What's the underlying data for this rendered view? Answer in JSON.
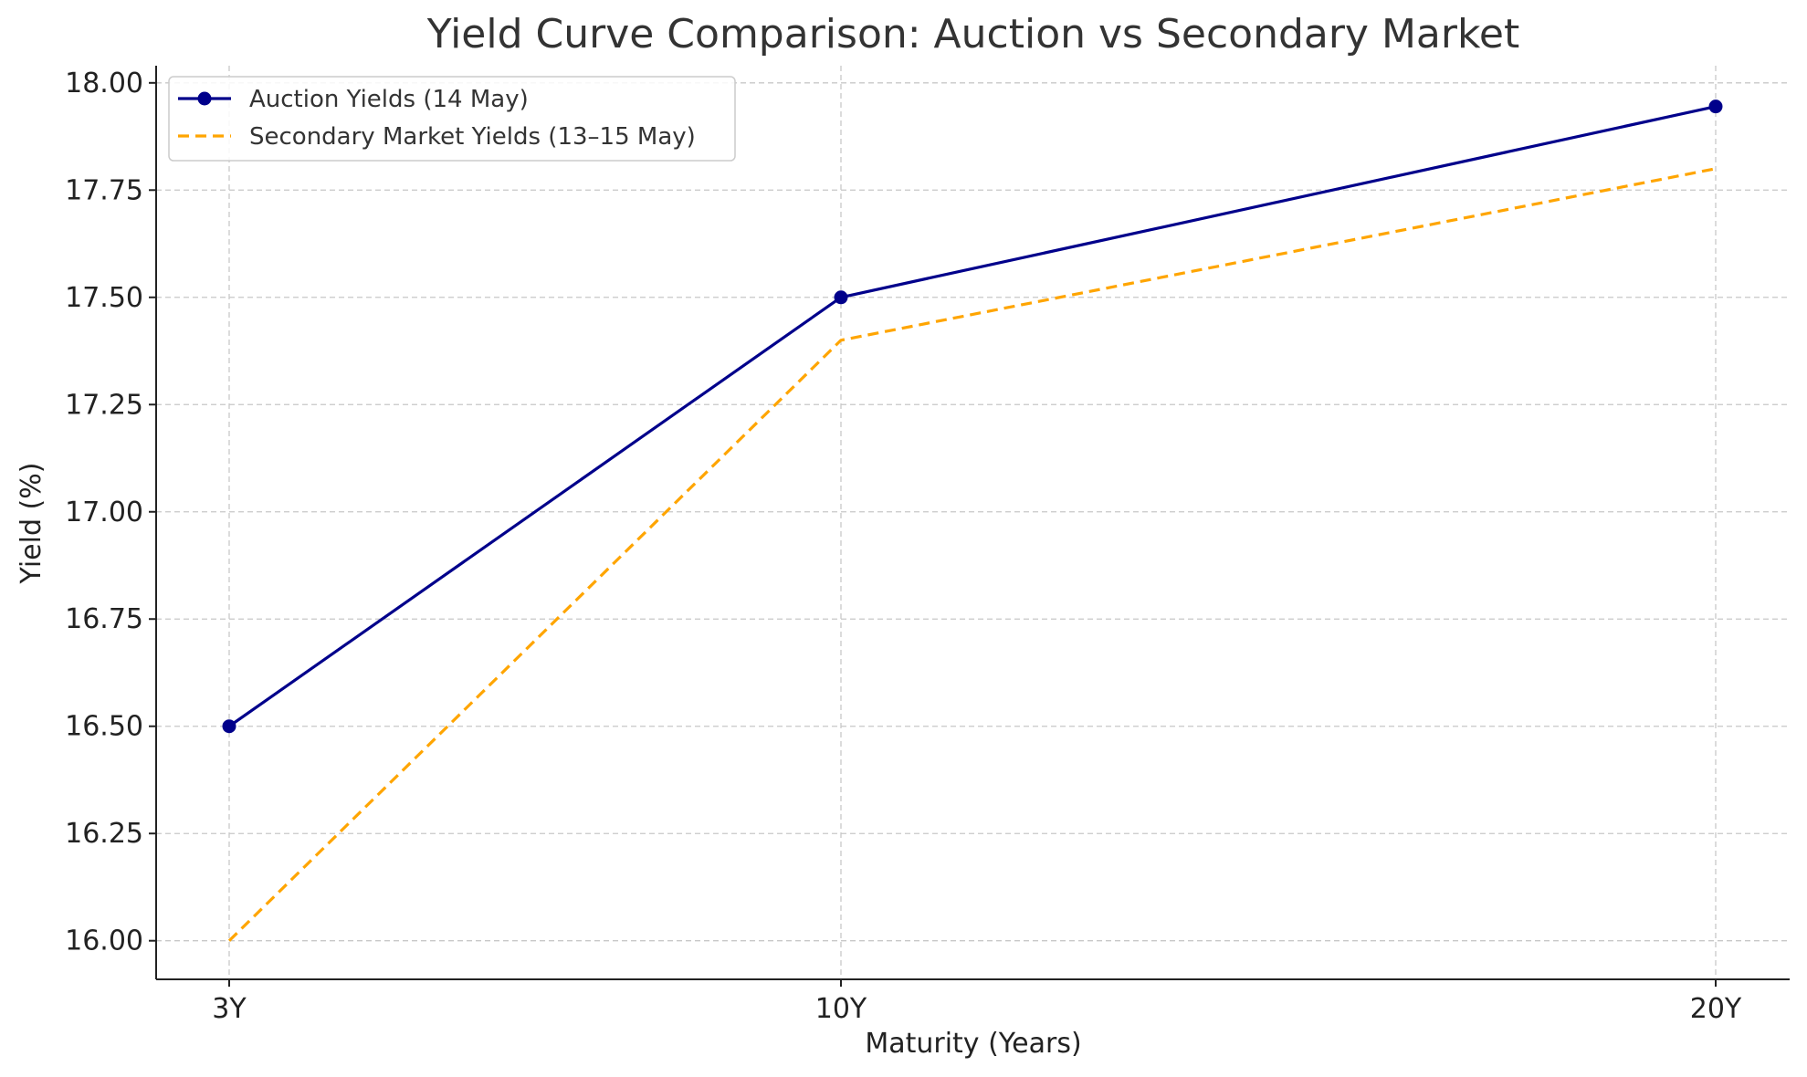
{
  "chart_data": {
    "type": "line",
    "title": "Yield Curve Comparison: Auction vs Secondary Market",
    "xlabel": "Maturity (Years)",
    "ylabel": "Yield (%)",
    "categories": [
      "3Y",
      "10Y",
      "20Y"
    ],
    "ylim": [
      15.91,
      18.04
    ],
    "yticks": [
      "16.00",
      "16.25",
      "16.50",
      "16.75",
      "17.00",
      "17.25",
      "17.50",
      "17.75",
      "18.00"
    ],
    "grid": true,
    "legend_position": "top-left",
    "series": [
      {
        "name": "Auction Yields (14 May)",
        "values": [
          16.5,
          17.5,
          17.945
        ],
        "color": "#00008b",
        "style": "solid",
        "markers": true
      },
      {
        "name": "Secondary Market Yields (13–15 May)",
        "values": [
          16.0,
          17.4,
          17.8
        ],
        "color": "#ffa500",
        "style": "dashed",
        "markers": false
      }
    ]
  }
}
